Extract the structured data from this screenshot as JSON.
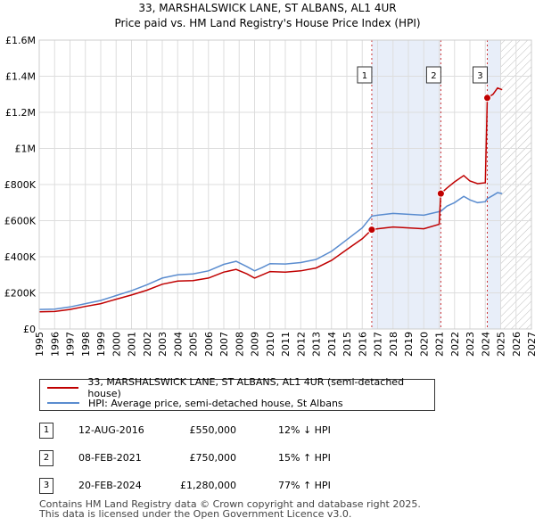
{
  "chart_data": {
    "type": "line",
    "title": "33, MARSHALSWICK LANE, ST ALBANS, AL1 4UR",
    "subtitle": "Price paid vs. HM Land Registry's House Price Index (HPI)",
    "xlim": [
      1995,
      2027
    ],
    "ylim": [
      0,
      1600000
    ],
    "y_ticks": [
      0,
      200000,
      400000,
      600000,
      800000,
      1000000,
      1200000,
      1400000,
      1600000
    ],
    "y_tick_labels": [
      "£0",
      "£200K",
      "£400K",
      "£600K",
      "£800K",
      "£1M",
      "£1.2M",
      "£1.4M",
      "£1.6M"
    ],
    "x_ticks": [
      1995,
      1996,
      1997,
      1998,
      1999,
      2000,
      2001,
      2002,
      2003,
      2004,
      2005,
      2006,
      2007,
      2008,
      2009,
      2010,
      2011,
      2012,
      2013,
      2014,
      2015,
      2016,
      2017,
      2018,
      2019,
      2020,
      2021,
      2022,
      2023,
      2024,
      2025,
      2026,
      2027
    ],
    "hatched_from": 2025.0,
    "series": [
      {
        "name": "33, MARSHALSWICK LANE, ST ALBANS, AL1 4UR (semi-detached house)",
        "color": "#c00000",
        "x": [
          1995.0,
          1996.0,
          1997.0,
          1998.0,
          1999.0,
          2000.0,
          2001.0,
          2002.0,
          2003.0,
          2004.0,
          2005.0,
          2006.0,
          2007.0,
          2007.8,
          2008.5,
          2009.0,
          2009.5,
          2010.0,
          2011.0,
          2012.0,
          2013.0,
          2014.0,
          2015.0,
          2016.0,
          2016.62,
          2017.0,
          2018.0,
          2019.0,
          2020.0,
          2021.0,
          2021.11,
          2021.5,
          2022.0,
          2022.6,
          2023.0,
          2023.5,
          2024.0,
          2024.13,
          2024.5,
          2024.8,
          2025.1
        ],
        "values": [
          95000,
          97000,
          108000,
          125000,
          140000,
          165000,
          188000,
          215000,
          248000,
          265000,
          268000,
          282000,
          315000,
          330000,
          305000,
          282000,
          300000,
          318000,
          315000,
          322000,
          338000,
          380000,
          440000,
          500000,
          550000,
          555000,
          565000,
          560000,
          555000,
          580000,
          750000,
          780000,
          815000,
          850000,
          820000,
          805000,
          810000,
          1280000,
          1300000,
          1335000,
          1325000
        ]
      },
      {
        "name": "HPI: Average price, semi-detached house, St Albans",
        "color": "#5a8ccf",
        "x": [
          1995.0,
          1996.0,
          1997.0,
          1998.0,
          1999.0,
          2000.0,
          2001.0,
          2002.0,
          2003.0,
          2004.0,
          2005.0,
          2006.0,
          2007.0,
          2007.8,
          2008.5,
          2009.0,
          2009.5,
          2010.0,
          2011.0,
          2012.0,
          2013.0,
          2014.0,
          2015.0,
          2016.0,
          2016.62,
          2017.0,
          2018.0,
          2019.0,
          2020.0,
          2021.0,
          2021.11,
          2021.5,
          2022.0,
          2022.6,
          2023.0,
          2023.5,
          2024.0,
          2024.13,
          2024.5,
          2024.8,
          2025.1
        ],
        "values": [
          108000,
          110000,
          122000,
          140000,
          158000,
          185000,
          212000,
          245000,
          282000,
          300000,
          305000,
          322000,
          358000,
          375000,
          345000,
          322000,
          340000,
          362000,
          360000,
          368000,
          385000,
          430000,
          495000,
          560000,
          625000,
          630000,
          640000,
          635000,
          630000,
          650000,
          652000,
          680000,
          700000,
          735000,
          715000,
          700000,
          705000,
          722000,
          740000,
          755000,
          750000
        ]
      }
    ],
    "sales": [
      {
        "n": "1",
        "date": "12-AUG-2016",
        "x": 2016.62,
        "price": 550000,
        "price_label": "£550,000",
        "hpi": "12% ↓ HPI"
      },
      {
        "n": "2",
        "date": "08-FEB-2021",
        "x": 2021.11,
        "price": 750000,
        "price_label": "£750,000",
        "hpi": "15% ↑ HPI"
      },
      {
        "n": "3",
        "date": "20-FEB-2024",
        "x": 2024.13,
        "price": 1280000,
        "price_label": "£1,280,000",
        "hpi": "77% ↑ HPI"
      }
    ]
  },
  "legend": {
    "property_label": "33, MARSHALSWICK LANE, ST ALBANS, AL1 4UR (semi-detached house)",
    "hpi_label": "HPI: Average price, semi-detached house, St Albans"
  },
  "footer": {
    "line1": "Contains HM Land Registry data © Crown copyright and database right 2025.",
    "line2": "This data is licensed under the Open Government Licence v3.0."
  }
}
